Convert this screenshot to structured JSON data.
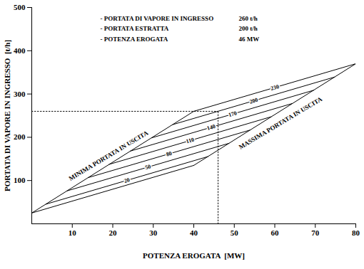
{
  "chart_data": {
    "type": "line",
    "xlabel": "POTENZA EROGATA  [MW]",
    "ylabel": "PORTATA DI VAPORE IN INGRESSO  [t/h]",
    "xlim": [
      0,
      80
    ],
    "xticks": [
      10,
      20,
      30,
      40,
      50,
      60,
      70,
      80
    ],
    "ylim": [
      0,
      500
    ],
    "yticks": [
      100,
      200,
      300,
      400,
      500
    ],
    "grid": false,
    "color": "#000000",
    "series": [
      {
        "name": null,
        "x": [
          0,
          40
        ],
        "y": [
          25,
          135
        ]
      },
      {
        "name": "20",
        "x": [
          3.5,
          43.5
        ],
        "y": [
          45.4,
          155.4
        ]
      },
      {
        "name": "50",
        "x": [
          8.7,
          48.7
        ],
        "y": [
          76.1,
          186.1
        ]
      },
      {
        "name": "80",
        "x": [
          13.9,
          53.9
        ],
        "y": [
          106.7,
          216.7
        ]
      },
      {
        "name": "110",
        "x": [
          19.1,
          59.1
        ],
        "y": [
          137.4,
          247.4
        ]
      },
      {
        "name": "140",
        "x": [
          24.3,
          64.3
        ],
        "y": [
          168.0,
          278.0
        ]
      },
      {
        "name": "170",
        "x": [
          29.6,
          69.6
        ],
        "y": [
          198.7,
          308.7
        ]
      },
      {
        "name": "200",
        "x": [
          34.8,
          74.8
        ],
        "y": [
          229.3,
          339.3
        ]
      },
      {
        "name": "230",
        "x": [
          40,
          80
        ],
        "y": [
          260,
          370
        ]
      }
    ],
    "limit_lines": [
      {
        "name": "MINIMA PORTATA IN USCITA",
        "x": [
          0,
          40
        ],
        "y": [
          25,
          260
        ]
      },
      {
        "name": "MASSIMA PORTATA IN USCITA",
        "x": [
          40,
          80
        ],
        "y": [
          135,
          370
        ]
      }
    ],
    "operating_point": {
      "x": 46,
      "y": 260,
      "line_style": "dotted"
    },
    "annotations": [
      {
        "text": "- PORTATA DI VAPORE IN INGRESSO",
        "value": "260 t/h"
      },
      {
        "text": "- PORTATA ESTRATTA",
        "value": "200 t/h"
      },
      {
        "text": "- POTENZA EROGATA",
        "value": "46 MW"
      }
    ]
  }
}
